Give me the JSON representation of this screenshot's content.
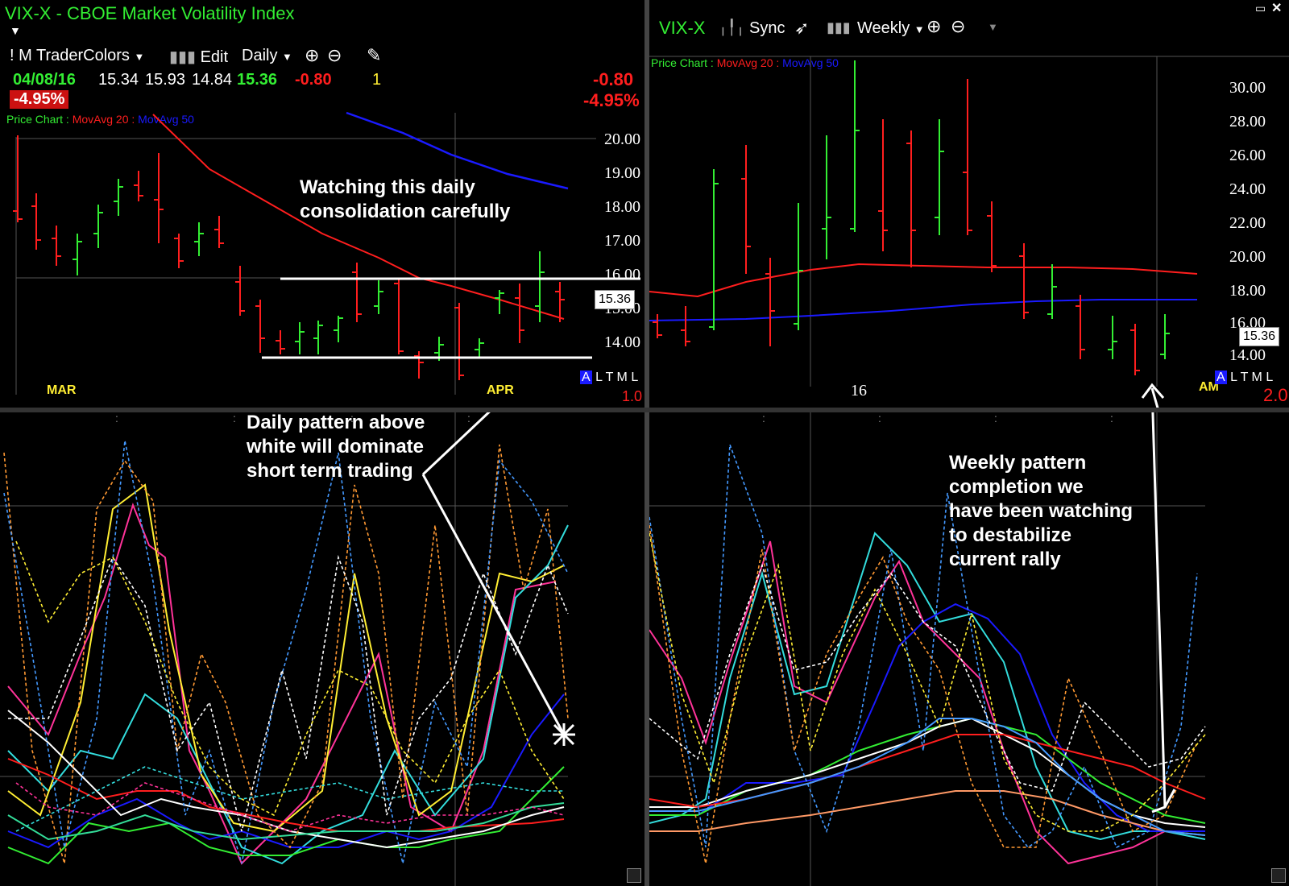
{
  "left": {
    "title": "VIX-X - CBOE Market Volatility Index",
    "toolbar": {
      "template": "! M TraderColors",
      "edit": "Edit",
      "period": "Daily"
    },
    "quote": {
      "date": "04/08/16",
      "open": "15.34",
      "high": "15.93",
      "low": "14.84",
      "close": "15.36",
      "change": "-0.80",
      "count": "1",
      "pct": "-4.95%",
      "change_right": "-0.80",
      "pct_right": "-4.95%"
    },
    "legend": {
      "price": "Price Chart :",
      "ma20": "MovAvg 20 :",
      "ma50": "MovAvg 50"
    },
    "y_ticks": [
      "20.00",
      "19.00",
      "18.00",
      "17.00",
      "16.00",
      "15.00",
      "14.00"
    ],
    "price_label": "15.36",
    "months": [
      "MAR",
      "APR"
    ],
    "altm": [
      "A",
      "L",
      "T",
      "M",
      "L"
    ],
    "scale": "1.0",
    "annotation_top": "Watching this daily\nconsolidation carefully",
    "annotation_bottom": "Daily pattern above\nwhite will dominate\nshort term trading"
  },
  "right": {
    "title": "VIX-X",
    "sync": "Sync",
    "period": "Weekly",
    "legend": {
      "price": "Price Chart :",
      "ma20": "MovAvg 20 :",
      "ma50": "MovAvg 50"
    },
    "y_ticks": [
      "30.00",
      "28.00",
      "26.00",
      "24.00",
      "22.00",
      "20.00",
      "18.00",
      "16.00",
      "14.00"
    ],
    "price_label": "15.36",
    "x_label": "16",
    "month": "AM",
    "altm": [
      "A",
      "L",
      "T",
      "M",
      "L"
    ],
    "scale": "2.0",
    "annotation_bottom": "Weekly pattern\ncompletion we\nhave been watching\nto destabilize\ncurrent rally"
  },
  "colors": {
    "up": "#33ee33",
    "down": "#ff1e1e",
    "ma50": "#1a1aff",
    "title": "#33ee33"
  }
}
